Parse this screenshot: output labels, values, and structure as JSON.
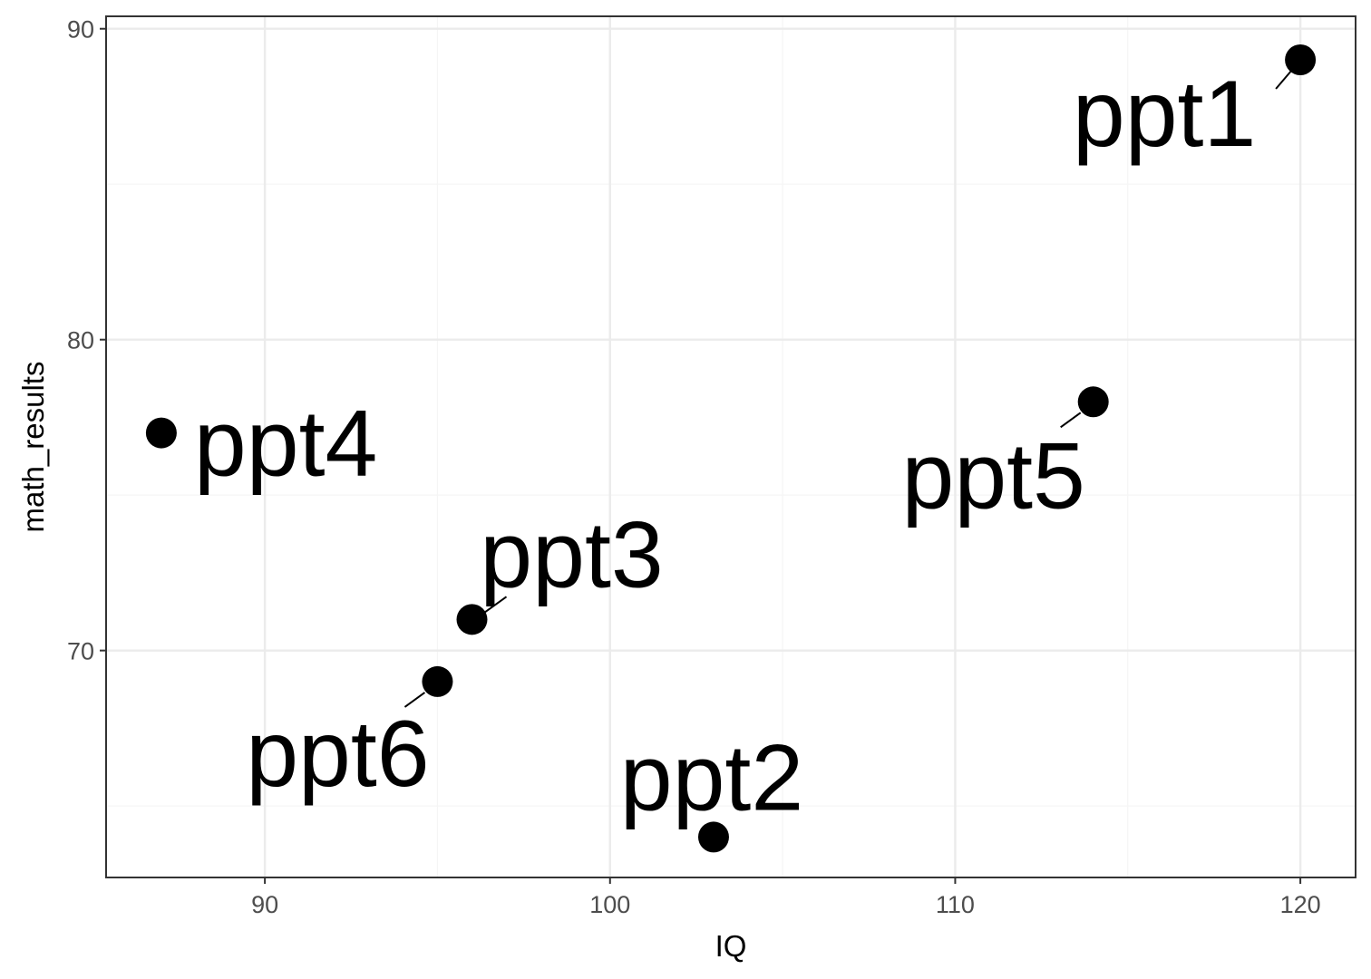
{
  "chart_data": {
    "type": "scatter",
    "title": "",
    "xlabel": "IQ",
    "ylabel": "math_results",
    "xlim": [
      85.4,
      121.6
    ],
    "ylim": [
      62.7,
      90.4
    ],
    "x_ticks": [
      90,
      100,
      110,
      120
    ],
    "y_ticks": [
      70,
      80,
      90
    ],
    "x_tick_labels": [
      "90",
      "100",
      "110",
      "120"
    ],
    "y_tick_labels": [
      "70",
      "80",
      "90"
    ],
    "grid": true,
    "legend": "none",
    "points": [
      {
        "label": "ppt1",
        "x": 120,
        "y": 89
      },
      {
        "label": "ppt2",
        "x": 103,
        "y": 64
      },
      {
        "label": "ppt3",
        "x": 96,
        "y": 71
      },
      {
        "label": "ppt4",
        "x": 87,
        "y": 77
      },
      {
        "label": "ppt5",
        "x": 114,
        "y": 78
      },
      {
        "label": "ppt6",
        "x": 95,
        "y": 69
      }
    ]
  },
  "colors": {
    "point": "#000000",
    "grid_major": "#ebebeb",
    "grid_minor": "#f5f5f5",
    "panel_border": "#333333",
    "tick_text": "#4d4d4d"
  }
}
